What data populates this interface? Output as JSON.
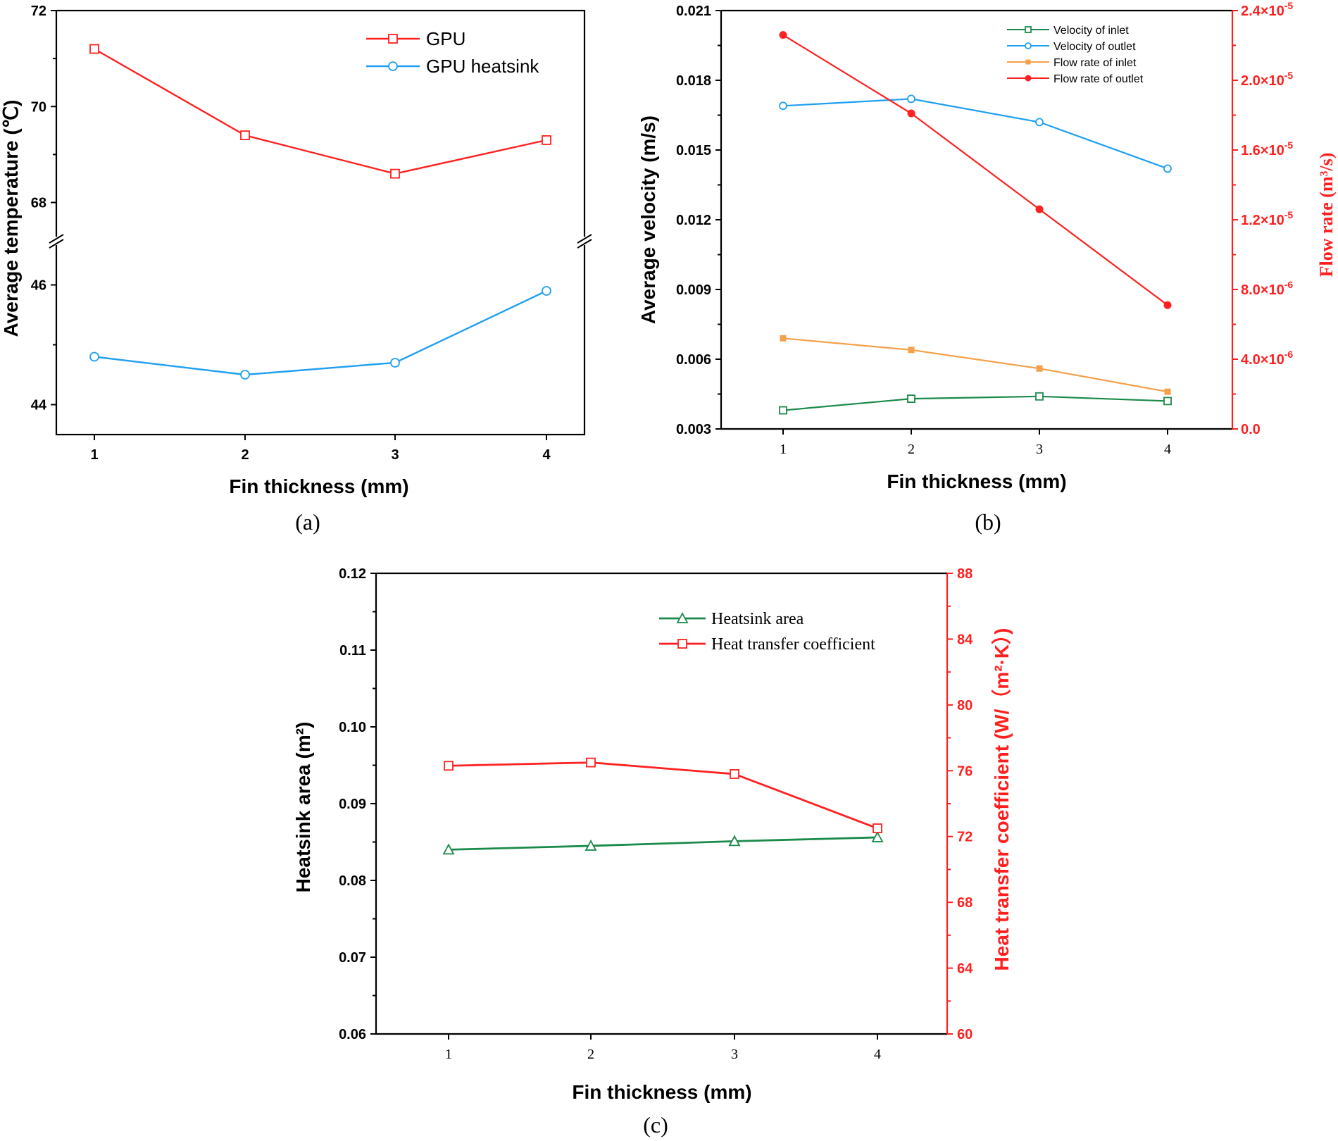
{
  "panel_labels": [
    "(a)",
    "(b)",
    "(c)"
  ],
  "colors": {
    "red": "#ff2020",
    "blue": "#1e9ff2",
    "green": "#1a8a4a",
    "orange": "#f5a04a",
    "axis_red": "#ff1f1f"
  },
  "chart_data": [
    {
      "id": "a",
      "type": "line",
      "title": "",
      "xlabel": "Fin thickness (mm)",
      "ylabel": "Average temperature (℃)",
      "x": [
        1,
        2,
        3,
        4
      ],
      "x_ticks": [
        "1",
        "2",
        "3",
        "4"
      ],
      "axis_break": true,
      "ylim_upper": [
        67.2,
        72
      ],
      "ylim_lower": [
        43.5,
        46.7
      ],
      "y_ticks_upper": [
        "68",
        "70",
        "72"
      ],
      "y_ticks_lower": [
        "44",
        "46"
      ],
      "series": [
        {
          "name": "GPU",
          "values": [
            71.2,
            69.4,
            68.6,
            69.3
          ],
          "color": "#ff2020",
          "marker": "square-open"
        },
        {
          "name": "GPU heatsink",
          "values": [
            44.8,
            44.5,
            44.7,
            45.9
          ],
          "color": "#1e9ff2",
          "marker": "circle-open"
        }
      ]
    },
    {
      "id": "b",
      "type": "line",
      "title": "",
      "xlabel": "Fin thickness (mm)",
      "ylabel": "Average velocity (m/s)",
      "ylabel_right": "Flow rate (m³/s)",
      "x": [
        1,
        2,
        3,
        4
      ],
      "x_ticks": [
        "1",
        "2",
        "3",
        "4"
      ],
      "ylim": [
        0.003,
        0.021
      ],
      "y_ticks": [
        "0.003",
        "0.006",
        "0.009",
        "0.012",
        "0.015",
        "0.018",
        "0.021"
      ],
      "ylim_right": [
        0,
        2.4e-05
      ],
      "y_ticks_right": [
        {
          "mantissa": "0.0",
          "exp": ""
        },
        {
          "mantissa": "4.0×10",
          "exp": "-6"
        },
        {
          "mantissa": "8.0×10",
          "exp": "-6"
        },
        {
          "mantissa": "1.2×10",
          "exp": "-5"
        },
        {
          "mantissa": "1.6×10",
          "exp": "-5"
        },
        {
          "mantissa": "2.0×10",
          "exp": "-5"
        },
        {
          "mantissa": "2.4×10",
          "exp": "-5"
        }
      ],
      "series": [
        {
          "name": "Velocity of inlet",
          "axis": "left",
          "values": [
            0.0038,
            0.0043,
            0.0044,
            0.0042
          ],
          "color": "#1a8a4a",
          "marker": "square-open"
        },
        {
          "name": "Velocity of outlet",
          "axis": "left",
          "values": [
            0.0169,
            0.0172,
            0.0162,
            0.0142
          ],
          "color": "#1e9ff2",
          "marker": "circle-open"
        },
        {
          "name": "Flow rate of inlet",
          "axis": "left",
          "values": [
            0.0069,
            0.0064,
            0.0056,
            0.0046
          ],
          "color": "#f5a04a",
          "marker": "square-filled"
        },
        {
          "name": "Flow rate of outlet",
          "axis": "right",
          "values": [
            2.26e-05,
            1.81e-05,
            1.26e-05,
            7.1e-06
          ],
          "color": "#ff2020",
          "marker": "circle-filled"
        }
      ]
    },
    {
      "id": "c",
      "type": "line",
      "title": "",
      "xlabel": "Fin thickness (mm)",
      "ylabel": "Heatsink area (m²)",
      "ylabel_right": "Heat transfer coefficient (W/（m²·K）)",
      "x": [
        1,
        2,
        3,
        4
      ],
      "x_ticks": [
        "1",
        "2",
        "3",
        "4"
      ],
      "ylim": [
        0.06,
        0.12
      ],
      "y_ticks": [
        "0.06",
        "0.07",
        "0.08",
        "0.09",
        "0.10",
        "0.11",
        "0.12"
      ],
      "ylim_right": [
        60,
        88
      ],
      "y_ticks_right": [
        "60",
        "64",
        "68",
        "72",
        "76",
        "80",
        "84",
        "88"
      ],
      "series": [
        {
          "name": "Heatsink area",
          "axis": "left",
          "values": [
            0.084,
            0.0845,
            0.0851,
            0.0856
          ],
          "color": "#1a8a4a",
          "marker": "triangle-open"
        },
        {
          "name": "Heat transfer coefficient",
          "axis": "right",
          "values": [
            76.3,
            76.5,
            75.8,
            72.5
          ],
          "color": "#ff2020",
          "marker": "square-open"
        }
      ]
    }
  ]
}
